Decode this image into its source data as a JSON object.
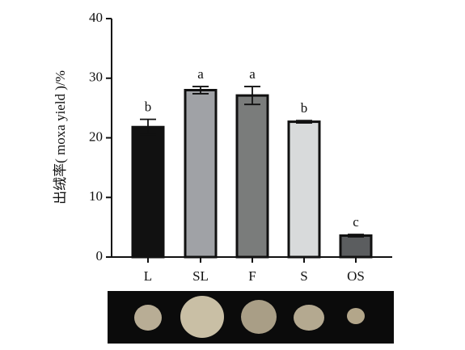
{
  "chart_data": {
    "type": "bar",
    "y_label": "出绒率( moxa yield )/%",
    "categories": [
      "L",
      "SL",
      "F",
      "S",
      "OS"
    ],
    "values": [
      21.8,
      28.0,
      27.1,
      22.7,
      3.6
    ],
    "errors": [
      1.3,
      0.6,
      1.5,
      0.2,
      0.2
    ],
    "significance_letters": [
      "b",
      "a",
      "a",
      "b",
      "c"
    ],
    "colors": [
      "#111111",
      "#a0a2a6",
      "#7a7c7b",
      "#d8dadb",
      "#5b5d5f"
    ],
    "ylim": [
      0,
      40
    ],
    "yticks": [
      0,
      10,
      20,
      30,
      40
    ]
  }
}
